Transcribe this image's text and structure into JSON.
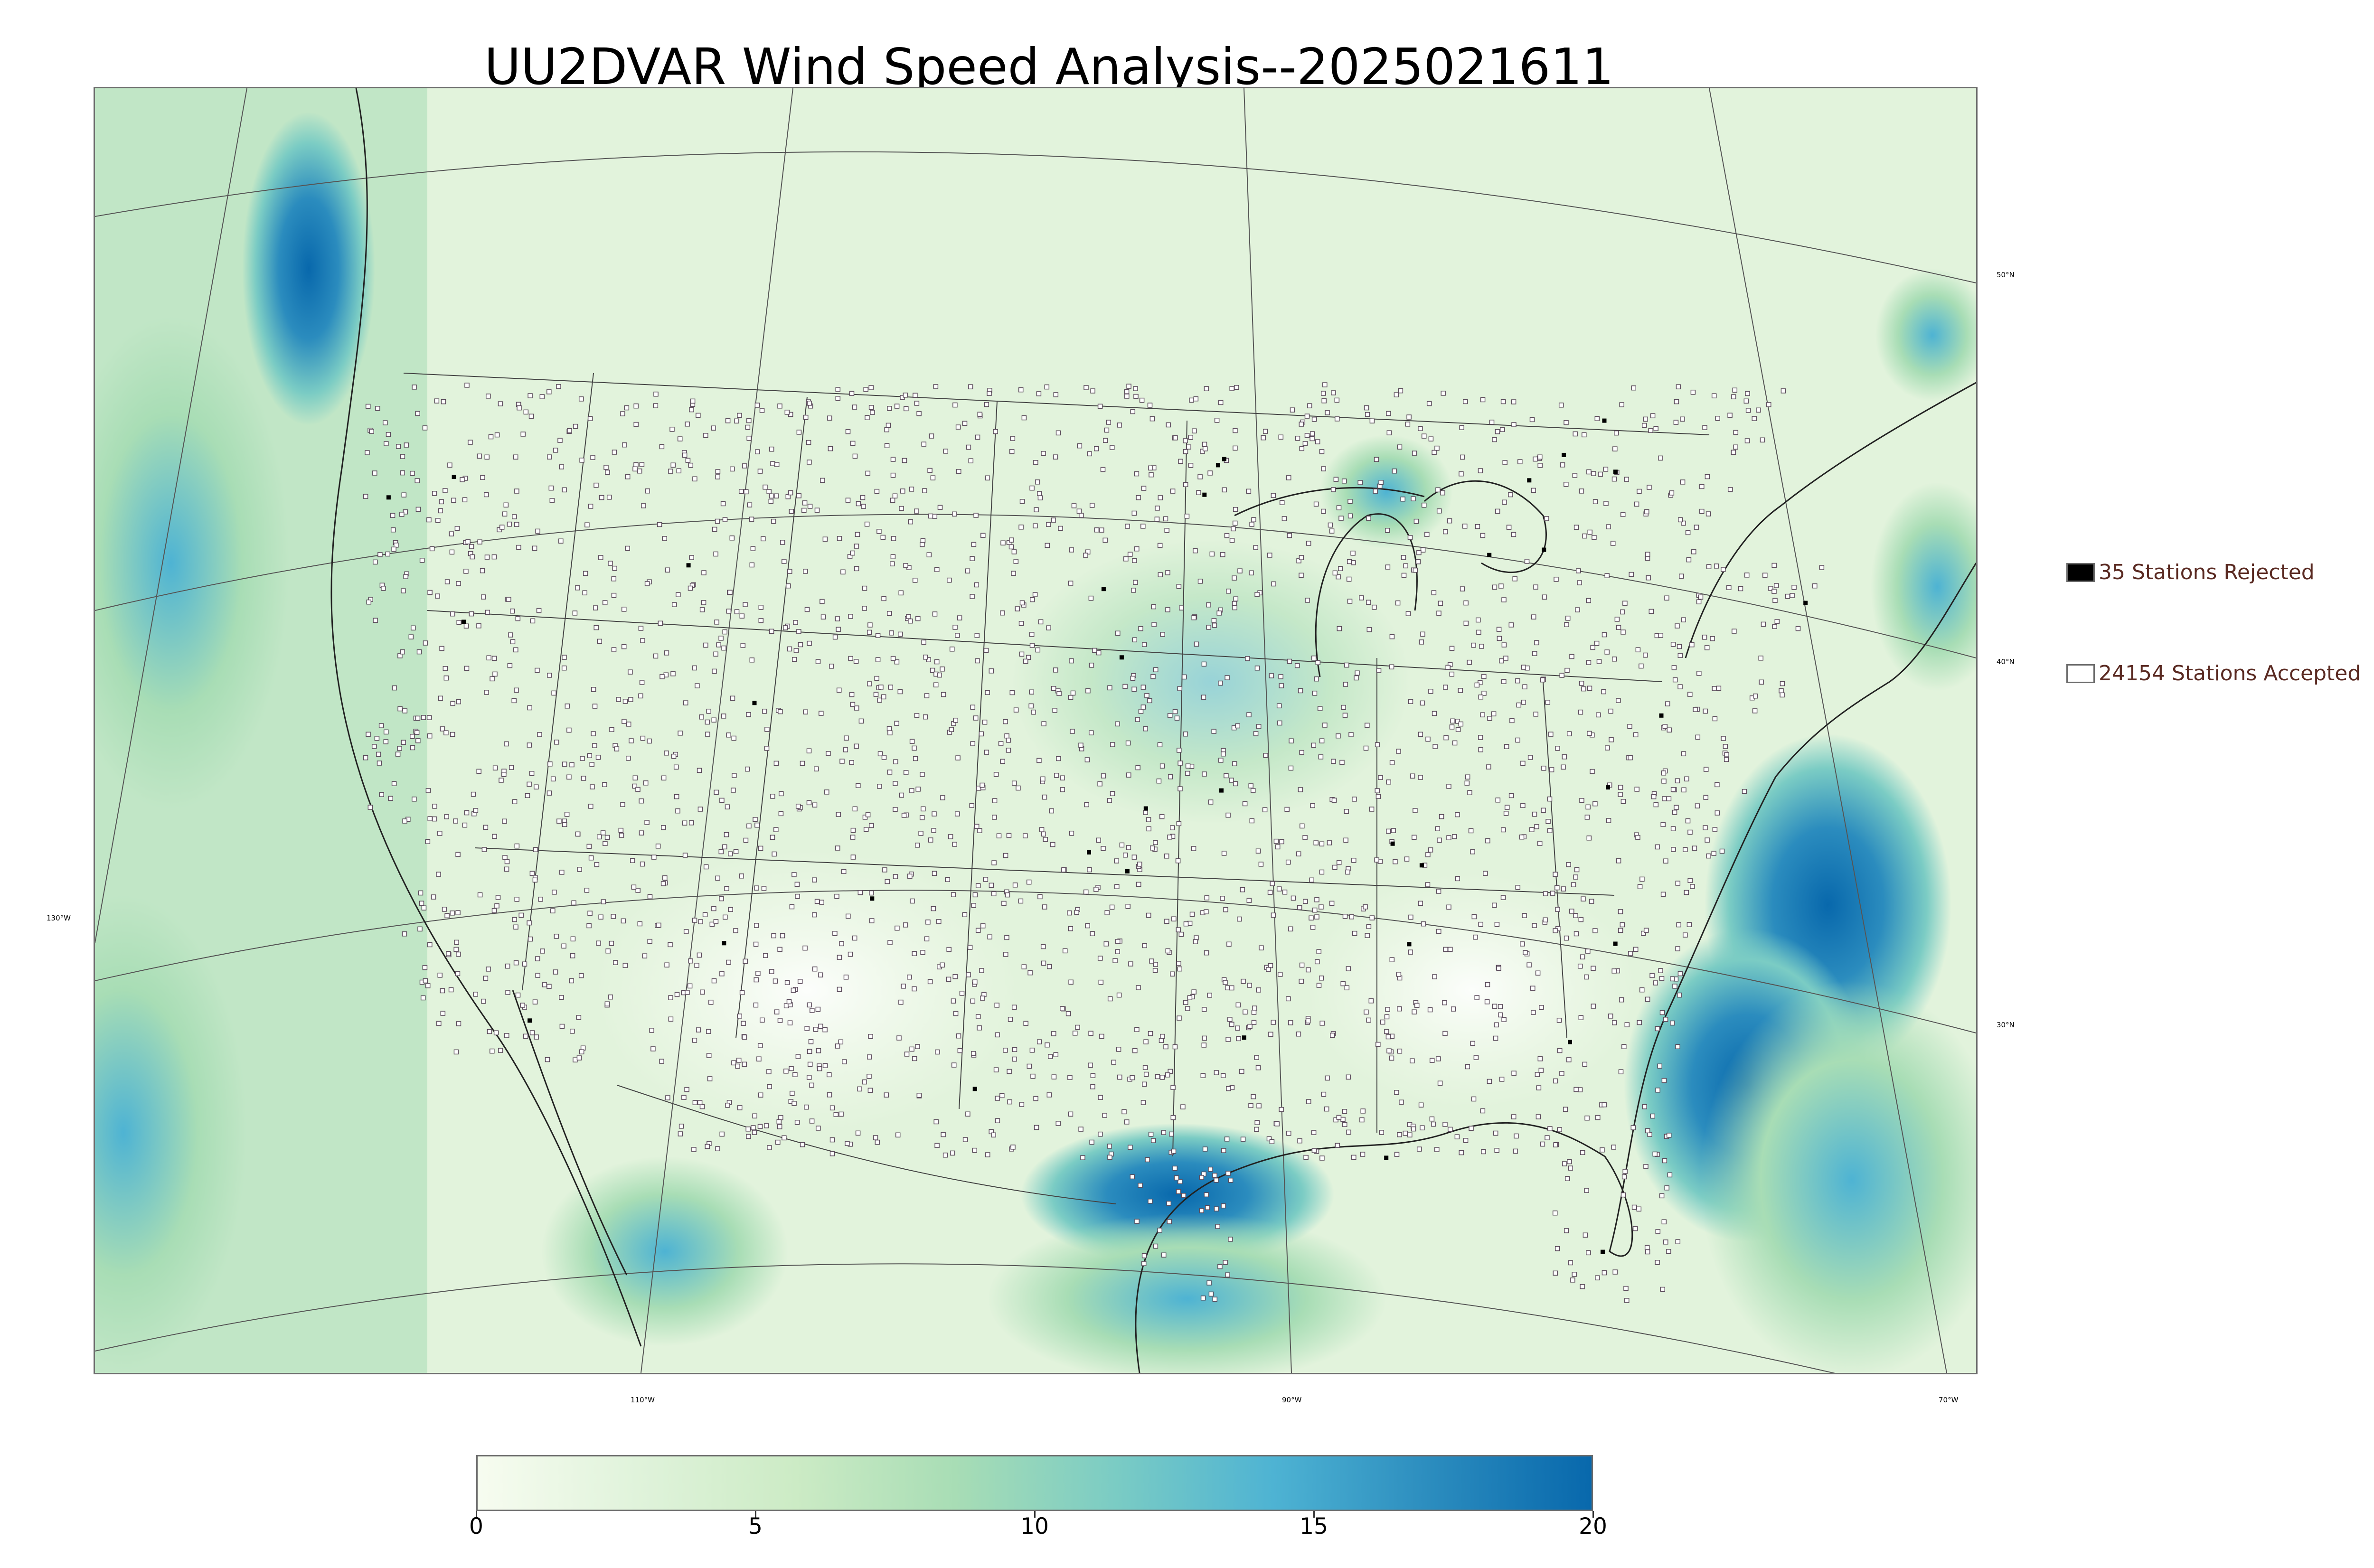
{
  "title": "UU2DVAR Wind Speed Analysis--2025021611",
  "latitude_labels": [
    "50°N",
    "40°N",
    "30°N"
  ],
  "longitude_labels": [
    "130°W",
    "110°W",
    "90°W",
    "70°W"
  ],
  "legend": {
    "rejected": {
      "label": "35 Stations Rejected",
      "color": "#000000"
    },
    "accepted": {
      "label": "24154 Stations Accepted",
      "color": "#ffffff"
    }
  },
  "colorbar": {
    "ticks": [
      "0",
      "5",
      "10",
      "15",
      "20"
    ],
    "min": 0,
    "max": 20,
    "colors": [
      "#f7fcf0",
      "#e0f3db",
      "#ccebc5",
      "#a8ddb5",
      "#7bccc4",
      "#4eb3d3",
      "#2b8cbe",
      "#0868ac"
    ]
  },
  "colors": {
    "land_base": "#e4f4dd",
    "ocean_low": "#cfeccb",
    "ocean_high": "#1c6fb0",
    "boundary": "#555555"
  }
}
